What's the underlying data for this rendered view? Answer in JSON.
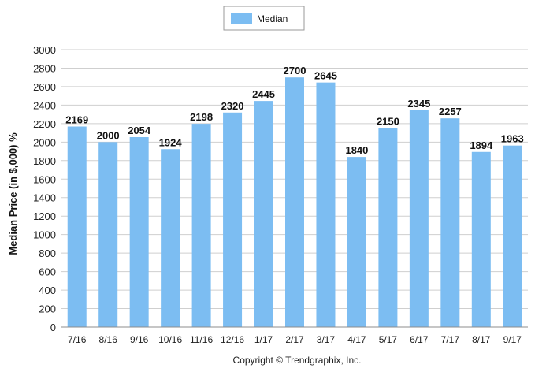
{
  "chart_data": {
    "type": "bar",
    "categories": [
      "7/16",
      "8/16",
      "9/16",
      "10/16",
      "11/16",
      "12/16",
      "1/17",
      "2/17",
      "3/17",
      "4/17",
      "5/17",
      "6/17",
      "7/17",
      "8/17",
      "9/17"
    ],
    "series": [
      {
        "name": "Median",
        "values": [
          2169,
          2000,
          2054,
          1924,
          2198,
          2320,
          2445,
          2700,
          2645,
          1840,
          2150,
          2345,
          2257,
          1894,
          1963
        ]
      }
    ],
    "ylabel": "Median Price (in $,000) %",
    "xlabel": "",
    "ylim": [
      0,
      3000
    ],
    "yticks": [
      0,
      200,
      400,
      600,
      800,
      1000,
      1200,
      1400,
      1600,
      1800,
      2000,
      2200,
      2400,
      2600,
      2800,
      3000
    ],
    "grid": true,
    "legend_position": "top-center",
    "colors": {
      "bar": "#7cbdf2",
      "grid": "#cfcfcf"
    }
  },
  "footer": {
    "copyright": "Copyright © Trendgraphix, Inc."
  }
}
